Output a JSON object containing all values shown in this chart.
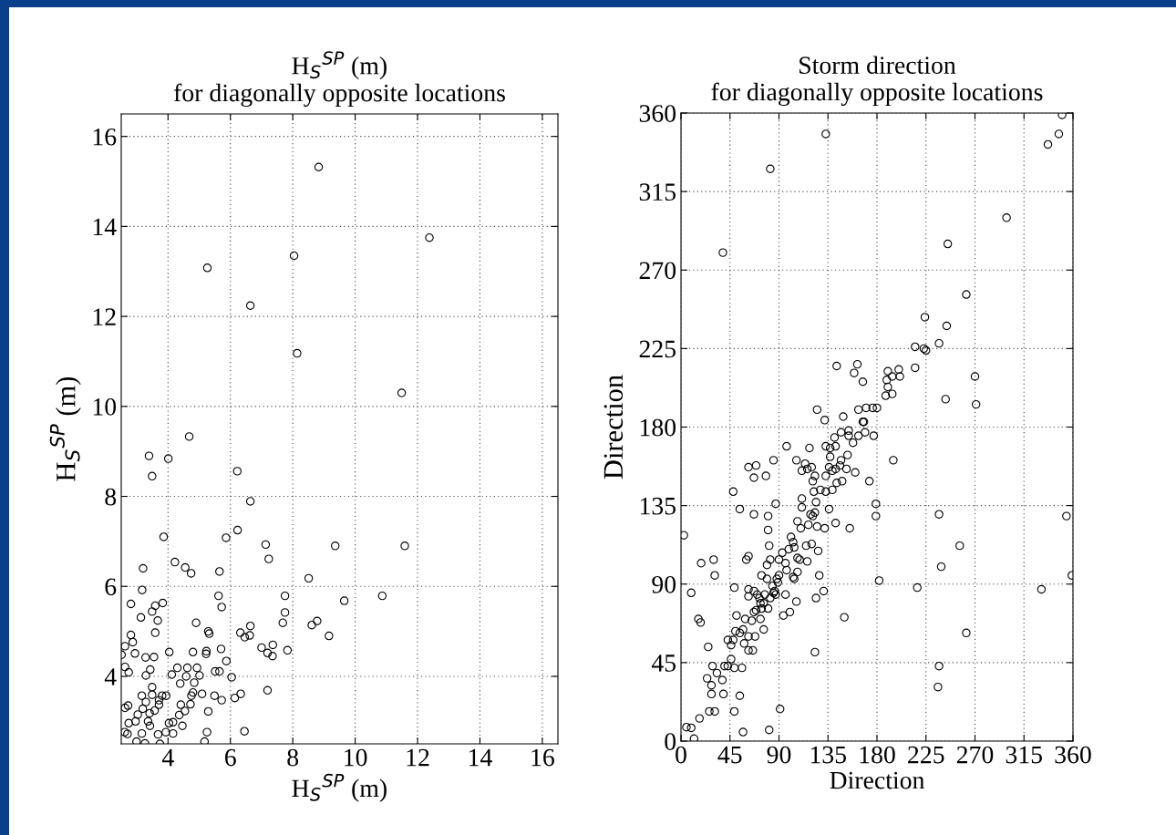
{
  "chart_data": [
    {
      "type": "scatter",
      "title": "H$_{S}$$^{SP}$ (m)",
      "subtitle": "for diagonally opposite locations",
      "xlabel": "H$_{S}$$^{SP}$ (m)",
      "ylabel": "H$_{S}$$^{SP}$ (m)",
      "xlim": [
        2.5,
        16.5
      ],
      "ylim": [
        2.5,
        16.5
      ],
      "xticks": [
        4,
        6,
        8,
        10,
        12,
        14,
        16
      ],
      "yticks": [
        4,
        6,
        8,
        10,
        12,
        14,
        16
      ],
      "grid": true,
      "marker": "circle",
      "series": [
        {
          "color": "#000000",
          "x": [
            8.83,
            12.38,
            5.26,
            8.04,
            6.64,
            8.14,
            11.49,
            4.68,
            3.39,
            4.01,
            3.49,
            6.22,
            6.64,
            3.86,
            5.86,
            6.23,
            7.13,
            7.23,
            9.36,
            11.59,
            4.22,
            4.55,
            4.74,
            3.2,
            5.65,
            8.51,
            3.17,
            5.62,
            5.72,
            7.75,
            9.65,
            10.87,
            7.75,
            7.68,
            8.61,
            8.78,
            9.16,
            6.64,
            6.32,
            6.46,
            6.62,
            7.0,
            7.19,
            7.35,
            7.36,
            7.83,
            7.19,
            6.45,
            4.9,
            5.29,
            5.32,
            5.7,
            5.87,
            6.04,
            6.14,
            6.33,
            5.23,
            5.22,
            4.8,
            4.04,
            5.51,
            5.65,
            4.93,
            4.62,
            4.3,
            4.12,
            4.58,
            5.01,
            4.84,
            4.39,
            4.8,
            4.75,
            5.09,
            5.49,
            5.72,
            5.29,
            4.72,
            4.54,
            4.41,
            4.36,
            4.46,
            4.16,
            4.03,
            3.94,
            3.81,
            3.71,
            3.83,
            3.59,
            3.49,
            3.67,
            3.59,
            3.55,
            2.81,
            3.13,
            2.81,
            2.87,
            2.62,
            2.51,
            2.94,
            3.28,
            2.62,
            2.74,
            3.29,
            3.43,
            3.49,
            3.16,
            3.49,
            3.29,
            3.71,
            3.57,
            3.19,
            3.03,
            2.72,
            2.62,
            2.96,
            2.74,
            2.61,
            2.7,
            3.16,
            3.42,
            3.68,
            3.93,
            4.16,
            3.26,
            2.99,
            3.74,
            5.25,
            5.17,
            3.36,
            3.41
          ],
          "values": [
            15.32,
            13.75,
            13.08,
            13.35,
            12.24,
            11.18,
            10.3,
            9.33,
            8.9,
            8.84,
            8.45,
            8.56,
            7.89,
            7.1,
            7.08,
            7.25,
            6.93,
            6.61,
            6.9,
            6.9,
            6.54,
            6.42,
            6.29,
            6.4,
            6.33,
            6.18,
            5.92,
            5.79,
            5.54,
            5.79,
            5.68,
            5.79,
            5.42,
            5.19,
            5.14,
            5.23,
            4.9,
            5.12,
            4.97,
            4.87,
            4.91,
            4.64,
            4.52,
            4.45,
            4.7,
            4.58,
            3.69,
            2.78,
            5.19,
            5.0,
            4.95,
            4.61,
            4.34,
            3.98,
            3.52,
            3.61,
            4.56,
            4.5,
            4.54,
            4.54,
            4.11,
            4.11,
            4.19,
            4.19,
            4.19,
            4.04,
            4.0,
            4.02,
            3.86,
            3.84,
            3.64,
            3.57,
            3.61,
            3.57,
            3.47,
            3.22,
            3.38,
            3.23,
            3.37,
            3.14,
            2.9,
            2.98,
            2.96,
            3.57,
            3.57,
            3.47,
            5.63,
            5.57,
            5.44,
            5.24,
            4.97,
            4.43,
            5.61,
            5.31,
            4.92,
            4.76,
            4.67,
            4.48,
            4.51,
            4.42,
            4.21,
            4.09,
            4.02,
            4.15,
            3.76,
            3.57,
            3.59,
            3.43,
            3.37,
            3.24,
            3.28,
            3.15,
            3.35,
            3.3,
            3.0,
            2.96,
            2.76,
            2.72,
            2.73,
            2.9,
            2.71,
            2.76,
            2.73,
            2.51,
            2.55,
            2.5,
            2.76,
            2.55,
            3.0,
            3.18
          ]
        }
      ]
    },
    {
      "type": "scatter",
      "title": "Storm direction",
      "subtitle": "for diagonally opposite locations",
      "xlabel": "Direction",
      "ylabel": "Direction",
      "xlim": [
        0,
        360
      ],
      "ylim": [
        0,
        360
      ],
      "xticks": [
        0,
        45,
        90,
        135,
        180,
        225,
        270,
        315,
        360
      ],
      "yticks": [
        0,
        45,
        90,
        135,
        180,
        225,
        270,
        315,
        360
      ],
      "grid": true,
      "marker": "circle",
      "series": [
        {
          "color": "#000000",
          "x": [
            350,
            347,
            337,
            133,
            82,
            299,
            38.5,
            245,
            262,
            224,
            244,
            237,
            215,
            223,
            225,
            215,
            270,
            243,
            271,
            143,
            162,
            159,
            167,
            190,
            200,
            201,
            194,
            189,
            190,
            188,
            194,
            163,
            170,
            176,
            180,
            167,
            168,
            169,
            177,
            163,
            125,
            132,
            149,
            147,
            154,
            158,
            154,
            97,
            118,
            133,
            137,
            141,
            142,
            147,
            153,
            195,
            85,
            106,
            114,
            111,
            116,
            120,
            136,
            139,
            146,
            152,
            160,
            137,
            142,
            62,
            69,
            67,
            78,
            173,
            123,
            121,
            133,
            143,
            148,
            122,
            128,
            133,
            139,
            48,
            54,
            67,
            87,
            179,
            179,
            237,
            111,
            111,
            124,
            119,
            121,
            123,
            117,
            125,
            132,
            142,
            155,
            136,
            107,
            110,
            80,
            80,
            2.6,
            81,
            99,
            101,
            103,
            104,
            115,
            120,
            126,
            116,
            107,
            109,
            93,
            90,
            82,
            79,
            96,
            97,
            103,
            104,
            107,
            90,
            89,
            84,
            74,
            79,
            85,
            86,
            96,
            106,
            94,
            100,
            127,
            131,
            124,
            182,
            217,
            150,
            123,
            91,
            81,
            57,
            49,
            54,
            239,
            256,
            237,
            236,
            262,
            359,
            354,
            331,
            62,
            60,
            30,
            31,
            18.5,
            9.4,
            16,
            18,
            25,
            29,
            24,
            33,
            28,
            38,
            39,
            28,
            31,
            26,
            17,
            5,
            9.4,
            12,
            40,
            43,
            49,
            56,
            46,
            46,
            43,
            48,
            50,
            54,
            58,
            62,
            66,
            62,
            68,
            57,
            59,
            51,
            65,
            73,
            76,
            62,
            62,
            49,
            67,
            70,
            72,
            73,
            76,
            67,
            69,
            74,
            80,
            82,
            77,
            87,
            88
          ],
          "values": [
            359,
            348,
            342,
            348,
            328,
            300,
            280,
            285,
            256,
            243,
            238,
            228,
            226,
            225,
            224,
            214,
            209,
            196,
            193,
            215,
            216,
            211,
            206,
            212,
            213,
            209,
            209,
            207,
            203,
            198,
            199,
            190,
            191,
            191,
            191,
            183,
            183,
            177,
            175,
            175,
            190,
            184,
            186,
            177,
            178,
            171,
            175,
            169,
            168,
            169,
            168,
            174,
            169,
            161,
            164,
            161,
            161,
            161,
            159,
            155,
            156,
            157,
            157,
            155,
            158,
            156,
            154,
            163,
            156,
            157,
            158,
            151,
            152,
            149,
            152,
            149,
            152,
            148,
            149,
            143,
            144,
            143,
            144,
            143,
            133,
            130,
            136,
            136,
            129,
            130,
            139,
            134,
            137,
            130,
            129,
            131,
            124,
            123,
            122,
            125,
            122,
            133,
            126,
            122,
            129,
            121,
            118,
            112,
            110,
            117,
            114,
            111,
            112,
            113,
            109,
            103,
            105,
            104,
            108,
            104,
            104,
            101,
            102,
            98,
            94,
            93,
            97,
            95,
            91,
            89,
            95,
            93,
            85,
            86,
            84,
            80,
            72,
            74,
            95,
            86,
            82,
            92,
            88,
            71,
            51,
            18.4,
            6.4,
            5.2,
            17,
            26,
            100,
            112,
            43,
            31,
            62,
            95,
            129,
            87,
            106,
            104,
            104,
            95,
            102,
            85,
            70,
            68,
            54,
            43,
            36,
            39,
            32,
            35,
            27,
            27,
            17,
            17,
            13,
            8,
            7.6,
            1.4,
            43,
            43,
            42,
            42,
            47,
            55,
            58,
            58,
            63,
            62,
            56,
            52,
            52,
            60,
            60,
            64,
            70,
            72,
            69,
            70,
            64,
            83,
            87,
            88,
            86,
            84,
            82,
            79,
            79,
            74,
            75,
            76,
            76,
            82,
            84,
            84,
            93
          ]
        }
      ]
    }
  ]
}
